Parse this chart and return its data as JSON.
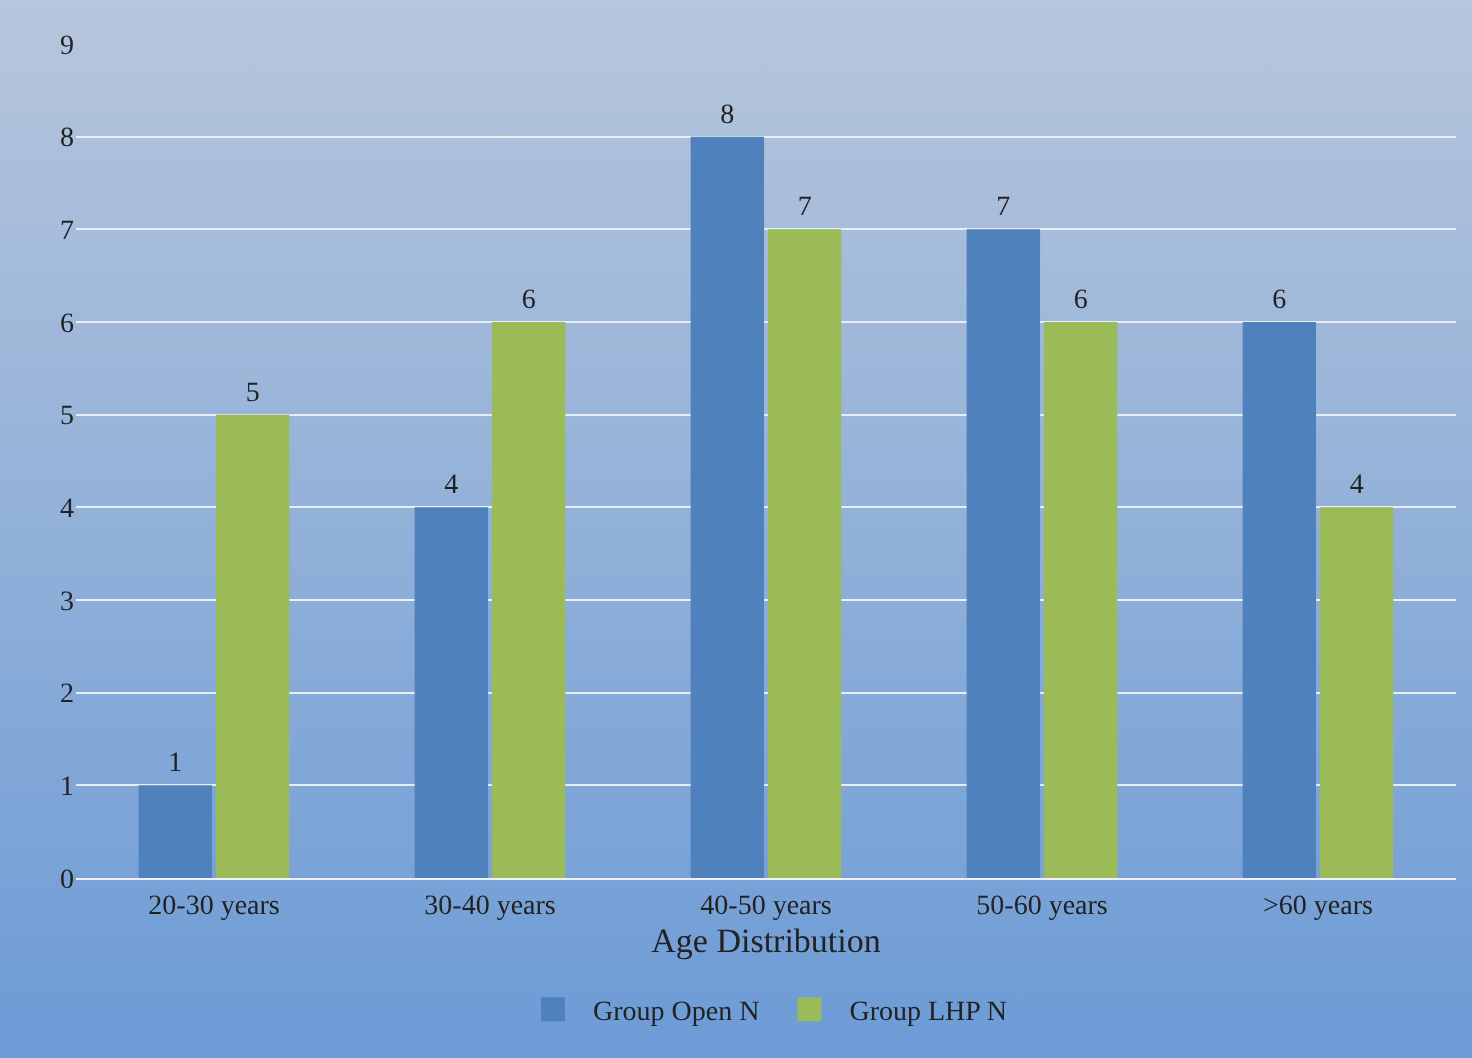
{
  "chart_data": {
    "type": "bar",
    "xlabel": "Age Distribution",
    "categories": [
      "20-30 years",
      "30-40 years",
      "40-50 years",
      "50-60 years",
      ">60 years"
    ],
    "series": [
      {
        "name": "Group Open N",
        "color": "#4f81bd",
        "values": [
          1,
          4,
          8,
          7,
          6
        ]
      },
      {
        "name": "Group LHP N",
        "color": "#9bbb59",
        "values": [
          5,
          6,
          7,
          6,
          4
        ]
      }
    ],
    "ylim": [
      0,
      9
    ],
    "yticks": [
      0,
      1,
      2,
      3,
      4,
      5,
      6,
      7,
      8,
      9
    ],
    "grid": "y",
    "legend": "bottom",
    "data_labels": true
  }
}
